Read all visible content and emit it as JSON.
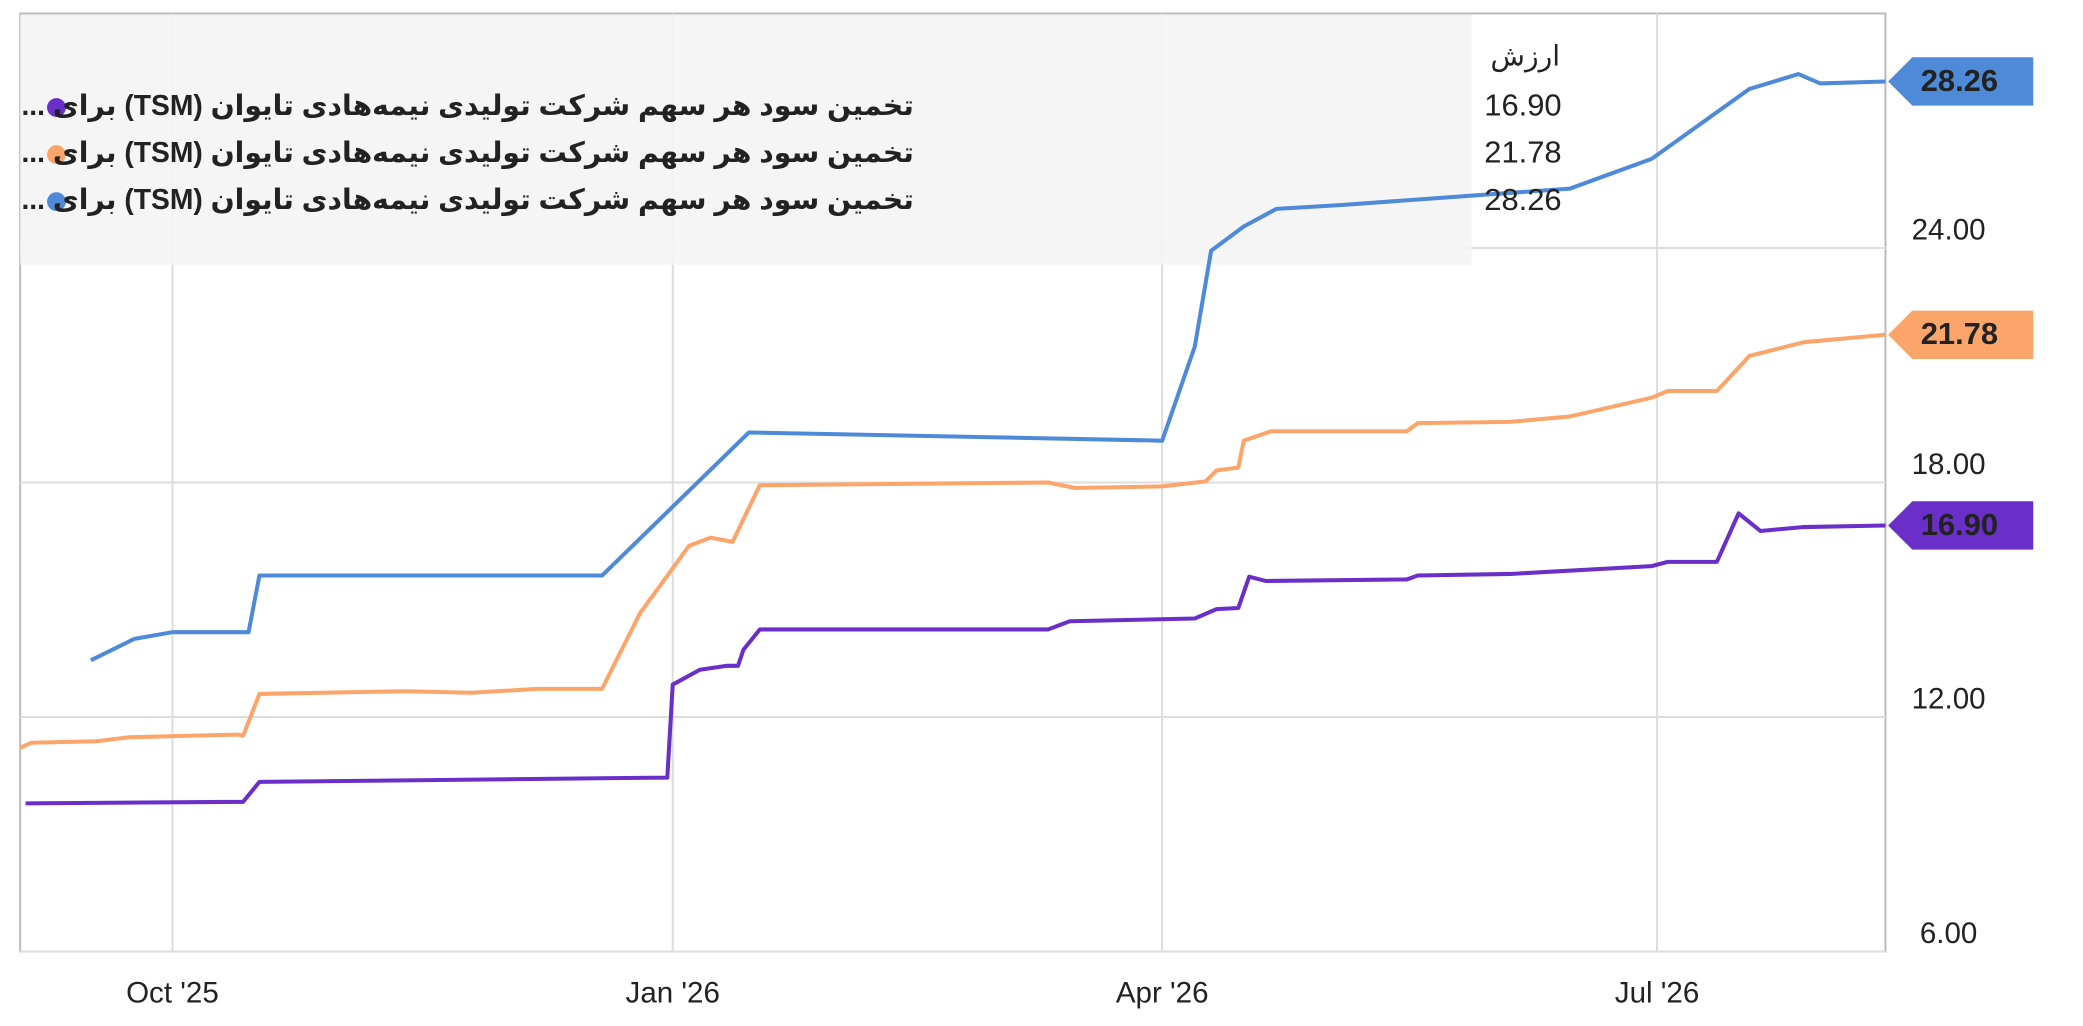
{
  "chart_data": {
    "type": "line",
    "legend_header": "ارزش",
    "xlim": [
      -28,
      315
    ],
    "xticks": [
      {
        "value": 0,
        "label": "Oct '25"
      },
      {
        "value": 92,
        "label": "Jan '26"
      },
      {
        "value": 182,
        "label": "Apr '26"
      },
      {
        "value": 273,
        "label": "Jul '26"
      }
    ],
    "ylim": [
      6,
      30
    ],
    "yticks": [
      {
        "value": 6,
        "label": "6.00"
      },
      {
        "value": 12,
        "label": "12.00"
      },
      {
        "value": 18,
        "label": "18.00"
      },
      {
        "value": 24,
        "label": "24.00"
      }
    ],
    "grid": true,
    "series": [
      {
        "name": "تخمین سود هر سهم شرکت تولیدی نیمه‌هادی تایوان (TSM) برای ...",
        "color": "#6a2fc9",
        "end_label": {
          "value": 16.9,
          "label": "16.90"
        },
        "x": [
          -27,
          13,
          16,
          91,
          92,
          97,
          102,
          104,
          105,
          108,
          161,
          165,
          188,
          192,
          196,
          198,
          201,
          227,
          229,
          246,
          272,
          275,
          284,
          288,
          292,
          300,
          315
        ],
        "values": [
          9.79,
          9.83,
          10.34,
          10.45,
          12.83,
          13.21,
          13.31,
          13.31,
          13.72,
          14.24,
          14.24,
          14.45,
          14.52,
          14.76,
          14.79,
          15.59,
          15.48,
          15.52,
          15.62,
          15.66,
          15.86,
          15.97,
          15.97,
          17.21,
          16.76,
          16.86,
          16.9
        ]
      },
      {
        "name": "تخمین سود هر سهم شرکت تولیدی نیمه‌هادی تایوان (TSM) برای ...",
        "color": "#fca56b",
        "end_label": {
          "value": 21.78,
          "label": "21.78"
        },
        "x": [
          -28,
          -26,
          -14,
          -8,
          3,
          12,
          13,
          16,
          43,
          55,
          67,
          79,
          86,
          95,
          99,
          103,
          108,
          161,
          166,
          182,
          190,
          192,
          196,
          197,
          202,
          227,
          229,
          246,
          257,
          272,
          275,
          284,
          290,
          300,
          315
        ],
        "values": [
          11.21,
          11.34,
          11.38,
          11.48,
          11.52,
          11.55,
          11.52,
          12.59,
          12.66,
          12.62,
          12.72,
          12.72,
          14.66,
          16.38,
          16.59,
          16.48,
          17.93,
          18.0,
          17.86,
          17.9,
          18.03,
          18.31,
          18.38,
          19.07,
          19.31,
          19.31,
          19.52,
          19.55,
          19.69,
          20.17,
          20.34,
          20.34,
          21.24,
          21.59,
          21.78
        ]
      },
      {
        "name": "تخمین سود هر سهم شرکت تولیدی نیمه‌هادی تایوان (TSM) برای ...",
        "color": "#4f8ad9",
        "end_label": {
          "value": 28.26,
          "label": "28.26"
        },
        "x": [
          -15,
          -7,
          0,
          14,
          16,
          79,
          106,
          182,
          188,
          191,
          197,
          203,
          215,
          257,
          272,
          290,
          299,
          303,
          315
        ],
        "values": [
          13.45,
          14.0,
          14.17,
          14.17,
          15.62,
          15.62,
          19.28,
          19.07,
          21.48,
          23.93,
          24.55,
          25.0,
          25.1,
          25.52,
          26.28,
          28.07,
          28.45,
          28.21,
          28.26
        ]
      }
    ]
  }
}
